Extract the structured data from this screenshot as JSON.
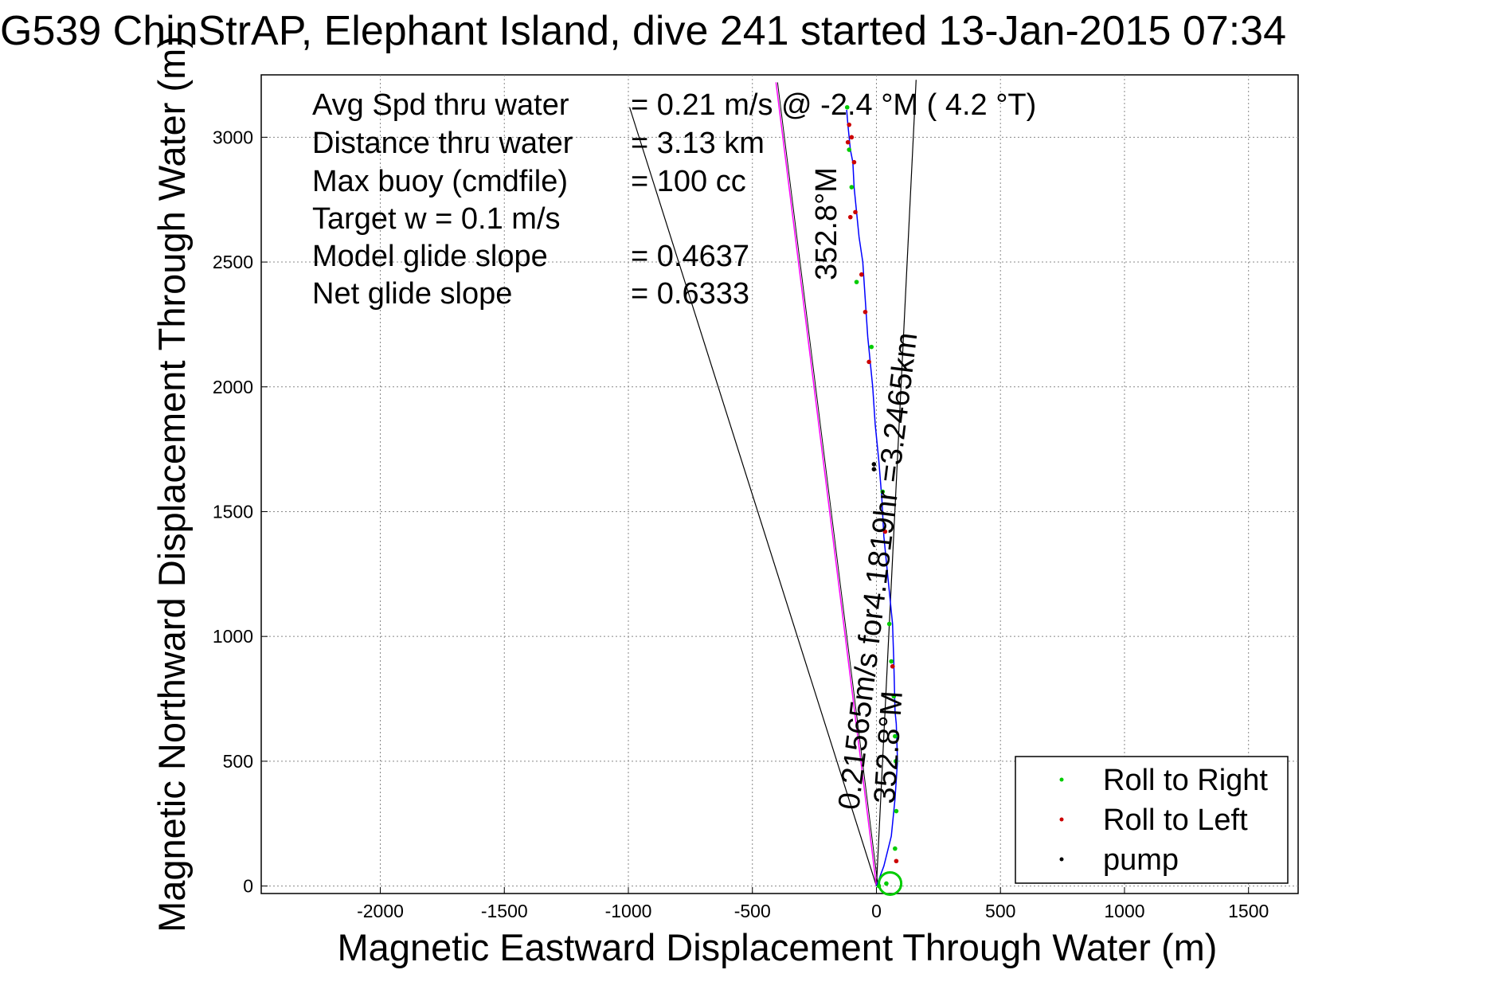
{
  "chart_data": {
    "type": "line",
    "title": "G539 ChinStrAP, Elephant Island, dive 241 started 13-Jan-2015 07:34",
    "xlabel": "Magnetic Eastward Displacement Through Water (m)",
    "ylabel": "Magnetic Northward Displacement Through Water (m)",
    "xlim": [
      -2480,
      1700
    ],
    "ylim": [
      -30,
      3250
    ],
    "x_ticks": [
      -2000,
      -1500,
      -1000,
      -500,
      0,
      500,
      1000,
      1500
    ],
    "y_ticks": [
      0,
      500,
      1000,
      1500,
      2000,
      2500,
      3000
    ],
    "grid": true,
    "legend_position": "bottom-right",
    "colors": {
      "track": "#0000ff",
      "roll_right": "#00cc00",
      "roll_left": "#cc0000",
      "pump": "#000000",
      "heading_line": "#ff00ff",
      "guide_line": "#000000"
    },
    "legend": [
      {
        "label": "Roll to Right",
        "color": "#00cc00"
      },
      {
        "label": "Roll to Left",
        "color": "#cc0000"
      },
      {
        "label": "pump",
        "color": "#000000"
      }
    ],
    "stats": [
      {
        "name": "Avg Spd thru water",
        "value": "=  0.21 m/s @  -2.4 °M (  4.2 °T)"
      },
      {
        "name": "Distance thru water",
        "value": "=  3.13 km"
      },
      {
        "name": "Max buoy (cmdfile)",
        "value": "= 100 cc"
      },
      {
        "name": "Target w    = 0.1 m/s",
        "value": ""
      },
      {
        "name": "Model glide slope",
        "value": "= 0.4637"
      },
      {
        "name": "Net glide slope",
        "value": "= 0.6333"
      }
    ],
    "annotations": {
      "heading_label_top": "352.8°M",
      "heading_speed_label": "0.21565m/s for4.1819hr =3.2465km",
      "heading_label_bottom": "352.8°M"
    },
    "heading_line": {
      "x": [
        0,
        -405
      ],
      "y": [
        0,
        3220
      ]
    },
    "guide_lines": [
      {
        "x": [
          0,
          -995
        ],
        "y": [
          0,
          3120
        ]
      },
      {
        "x": [
          0,
          160
        ],
        "y": [
          0,
          3230
        ]
      }
    ],
    "series": [
      {
        "name": "track",
        "x": [
          0,
          30,
          60,
          75,
          85,
          80,
          75,
          70,
          65,
          55,
          40,
          30,
          22,
          10,
          -5,
          -15,
          -35,
          -45,
          -55,
          -70,
          -80,
          -90,
          -95,
          -105,
          -110,
          -115,
          -120
        ],
        "y": [
          0,
          80,
          200,
          350,
          500,
          650,
          700,
          900,
          1050,
          1150,
          1300,
          1400,
          1550,
          1700,
          1850,
          2000,
          2200,
          2350,
          2500,
          2600,
          2700,
          2800,
          2900,
          2950,
          3000,
          3050,
          3110
        ]
      },
      {
        "name": "Roll to Right",
        "x": [
          75,
          80,
          78,
          75,
          70,
          60,
          52,
          25,
          -20,
          -80,
          -100,
          -110,
          -118,
          10,
          40
        ],
        "y": [
          150,
          300,
          500,
          600,
          760,
          900,
          1050,
          1580,
          2160,
          2420,
          2800,
          2950,
          3120,
          0,
          10
        ]
      },
      {
        "name": "Roll to Left",
        "x": [
          80,
          65,
          35,
          -30,
          -45,
          -60,
          -85,
          -90,
          -100,
          -110,
          -105,
          -115
        ],
        "y": [
          100,
          880,
          1420,
          2100,
          2300,
          2450,
          2700,
          2900,
          3000,
          3050,
          2680,
          2980
        ]
      },
      {
        "name": "pump",
        "x": [
          -10,
          -10
        ],
        "y": [
          1670,
          1690
        ]
      }
    ]
  }
}
